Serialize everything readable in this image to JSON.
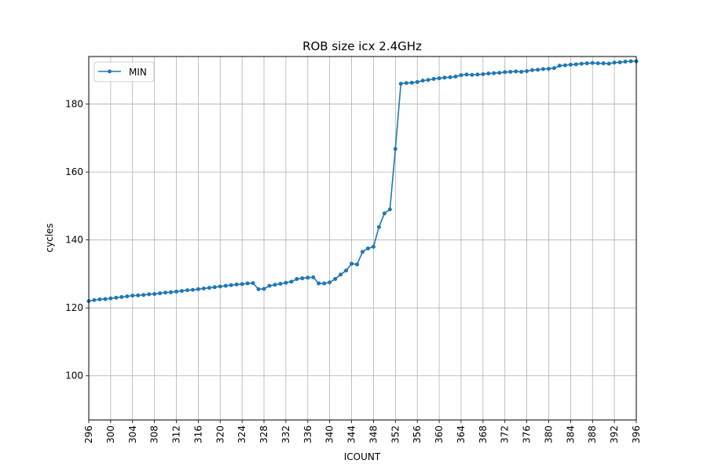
{
  "chart_data": {
    "type": "line",
    "title": "ROB size icx 2.4GHz",
    "xlabel": "ICOUNT",
    "ylabel": "cycles",
    "xlim": [
      296,
      396
    ],
    "ylim": [
      87,
      194
    ],
    "xticks": [
      296,
      300,
      304,
      308,
      312,
      316,
      320,
      324,
      328,
      332,
      336,
      340,
      344,
      348,
      352,
      356,
      360,
      364,
      368,
      372,
      376,
      380,
      384,
      388,
      392,
      396
    ],
    "yticks": [
      100,
      120,
      140,
      160,
      180
    ],
    "grid": true,
    "legend_position": "upper-left",
    "series": [
      {
        "name": "MIN",
        "color": "#1f77b4",
        "x": [
          296,
          297,
          298,
          299,
          300,
          301,
          302,
          303,
          304,
          305,
          306,
          307,
          308,
          309,
          310,
          311,
          312,
          313,
          314,
          315,
          316,
          317,
          318,
          319,
          320,
          321,
          322,
          323,
          324,
          325,
          326,
          327,
          328,
          329,
          330,
          331,
          332,
          333,
          334,
          335,
          336,
          337,
          338,
          339,
          340,
          341,
          342,
          343,
          344,
          345,
          346,
          347,
          348,
          349,
          350,
          351,
          352,
          353,
          354,
          355,
          356,
          357,
          358,
          359,
          360,
          361,
          362,
          363,
          364,
          365,
          366,
          367,
          368,
          369,
          370,
          371,
          372,
          373,
          374,
          375,
          376,
          377,
          378,
          379,
          380,
          381,
          382,
          383,
          384,
          385,
          386,
          387,
          388,
          389,
          390,
          391,
          392,
          393,
          394,
          395,
          396
        ],
        "values": [
          122.0,
          122.3,
          122.5,
          122.6,
          122.8,
          123.0,
          123.2,
          123.4,
          123.6,
          123.7,
          123.8,
          124.0,
          124.1,
          124.3,
          124.5,
          124.6,
          124.8,
          125.0,
          125.2,
          125.3,
          125.5,
          125.7,
          125.9,
          126.1,
          126.3,
          126.5,
          126.7,
          126.9,
          127.0,
          127.2,
          127.3,
          125.5,
          125.6,
          126.5,
          126.8,
          127.1,
          127.4,
          127.7,
          128.5,
          128.7,
          128.9,
          129.0,
          127.2,
          127.2,
          127.5,
          128.5,
          129.8,
          131.0,
          133.0,
          132.8,
          136.5,
          137.5,
          138.0,
          143.8,
          147.8,
          149.0,
          166.8,
          186.0,
          186.2,
          186.3,
          186.5,
          186.9,
          187.1,
          187.4,
          187.6,
          187.8,
          187.9,
          188.1,
          188.5,
          188.7,
          188.6,
          188.7,
          188.8,
          189.0,
          189.1,
          189.2,
          189.4,
          189.5,
          189.6,
          189.5,
          189.7,
          190.0,
          190.1,
          190.3,
          190.4,
          190.6,
          191.3,
          191.4,
          191.6,
          191.7,
          191.9,
          192.0,
          192.1,
          192.0,
          192.0,
          191.9,
          192.2,
          192.3,
          192.5,
          192.6,
          192.6
        ]
      }
    ]
  }
}
